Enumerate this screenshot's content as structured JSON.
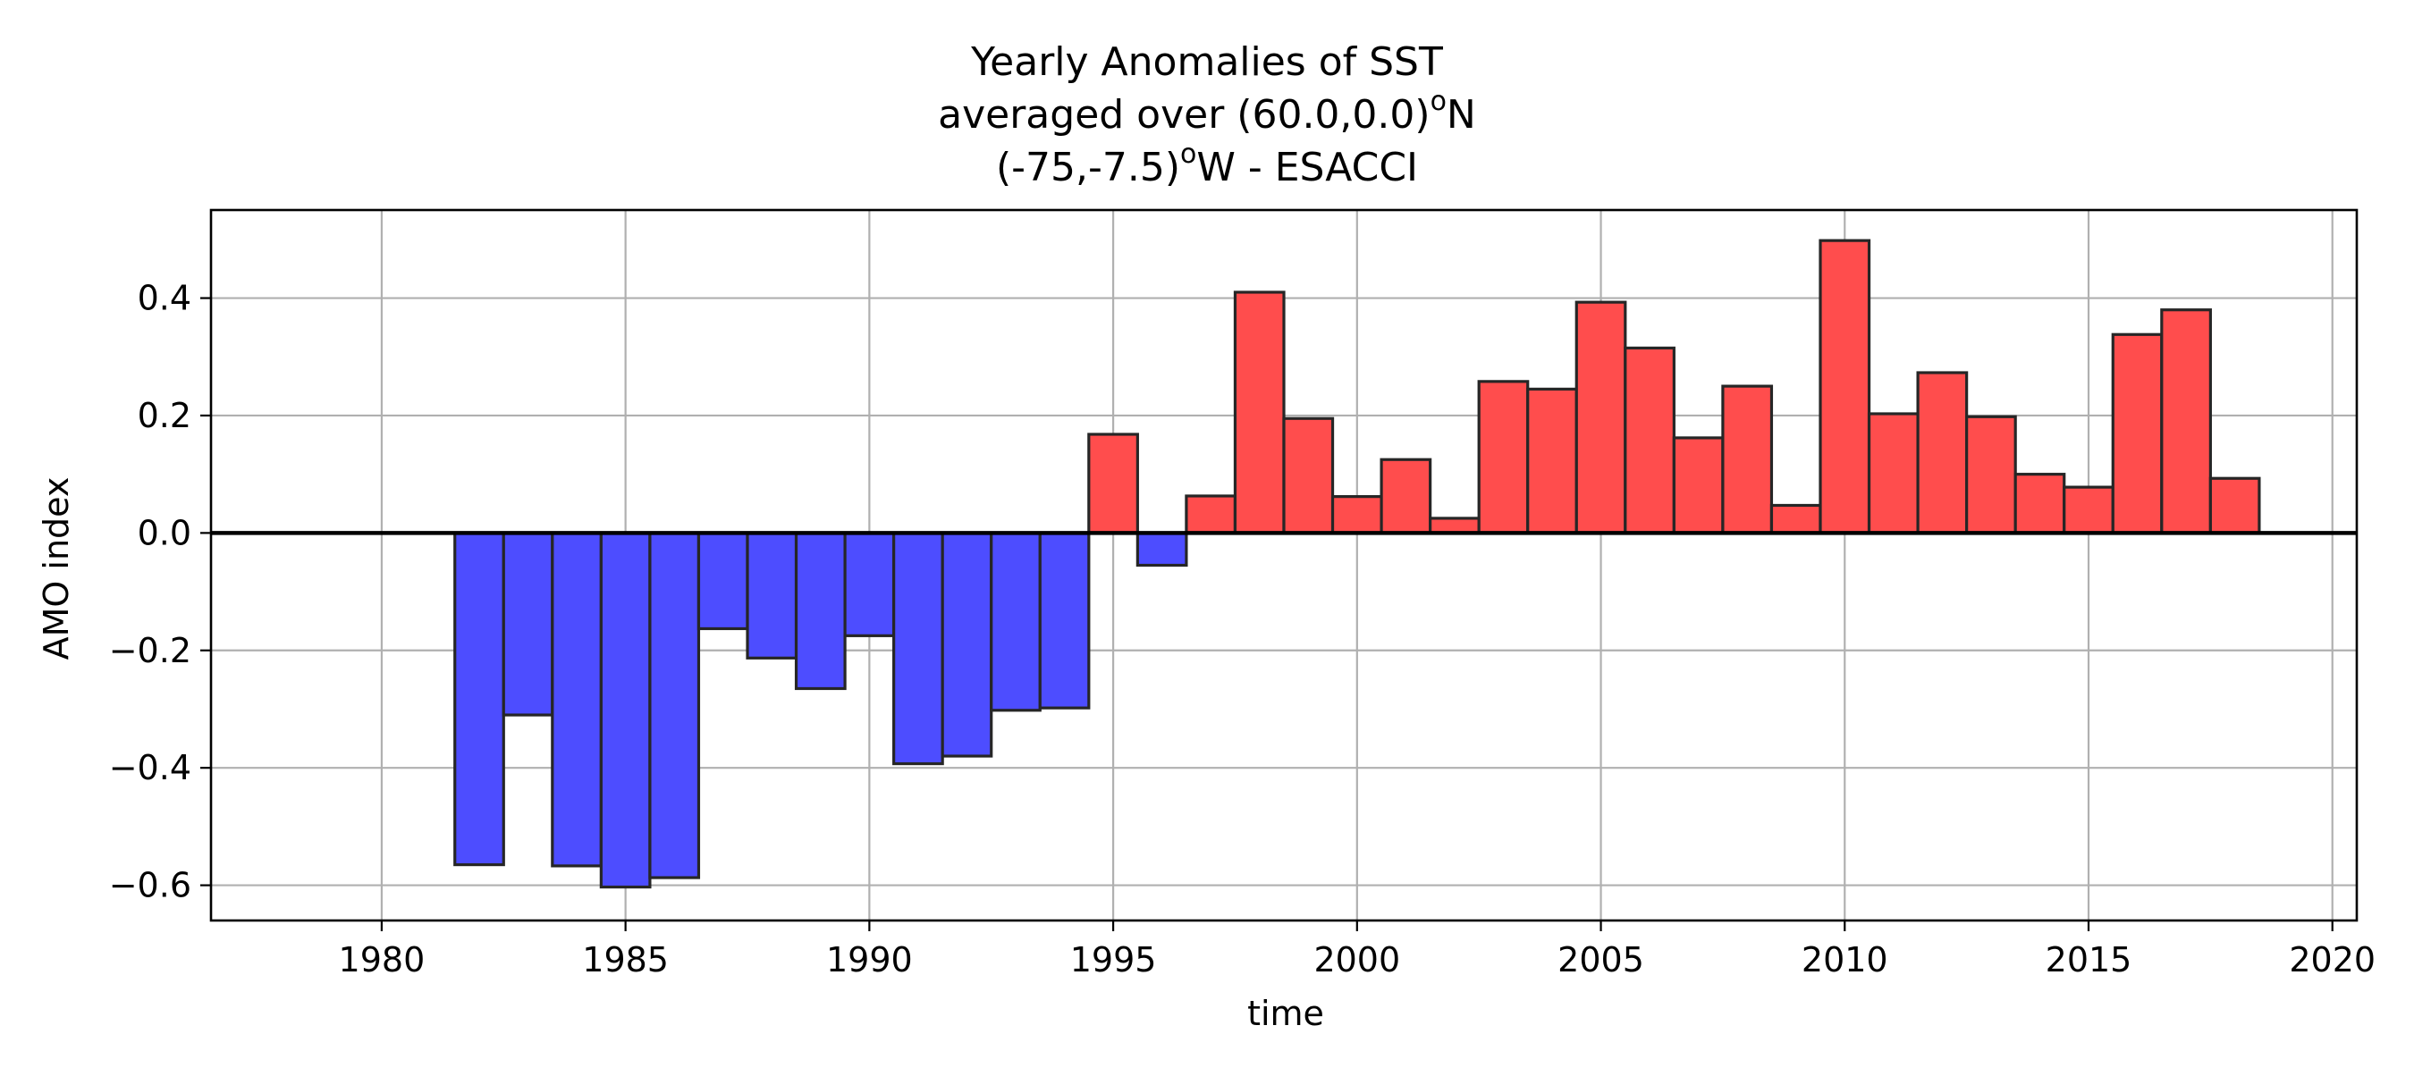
{
  "chart_data": {
    "type": "bar",
    "title_lines": [
      {
        "pre": "Yearly Anomalies of SST",
        "sup": "",
        "post": ""
      },
      {
        "pre": "averaged over (60.0,0.0)",
        "sup": "o",
        "post": "N"
      },
      {
        "pre": "(-75,-7.5)",
        "sup": "o",
        "post": "W - ESACCI"
      }
    ],
    "xlabel": "time",
    "ylabel": "AMO index",
    "xlim": [
      1976.5,
      2020.5
    ],
    "ylim": [
      -0.66,
      0.55
    ],
    "xticks": [
      1980,
      1985,
      1990,
      1995,
      2000,
      2005,
      2010,
      2015,
      2020
    ],
    "yticks": [
      -0.6,
      -0.4,
      -0.2,
      0.0,
      0.2,
      0.4
    ],
    "ytick_labels": [
      "−0.6",
      "−0.4",
      "−0.2",
      "0.0",
      "0.2",
      "0.4"
    ],
    "grid": true,
    "legend": "none",
    "colors": {
      "positive": "#ff4d4d",
      "negative": "#4d4dff",
      "edge": "#262626",
      "zero_line": "#000000",
      "grid": "#b0b0b0"
    },
    "x": [
      1982,
      1983,
      1984,
      1985,
      1986,
      1987,
      1988,
      1989,
      1990,
      1991,
      1992,
      1993,
      1994,
      1995,
      1996,
      1997,
      1998,
      1999,
      2000,
      2001,
      2002,
      2003,
      2004,
      2005,
      2006,
      2007,
      2008,
      2009,
      2010,
      2011,
      2012,
      2013,
      2014,
      2015,
      2016,
      2017,
      2018
    ],
    "values": [
      -0.565,
      -0.31,
      -0.567,
      -0.603,
      -0.587,
      -0.163,
      -0.213,
      -0.265,
      -0.175,
      -0.393,
      -0.38,
      -0.302,
      -0.298,
      0.168,
      -0.055,
      0.063,
      0.41,
      0.195,
      0.062,
      0.125,
      0.025,
      0.258,
      0.245,
      0.393,
      0.315,
      0.162,
      0.25,
      0.047,
      0.498,
      0.203,
      0.273,
      0.198,
      0.1,
      0.078,
      0.338,
      0.38,
      0.093
    ]
  }
}
